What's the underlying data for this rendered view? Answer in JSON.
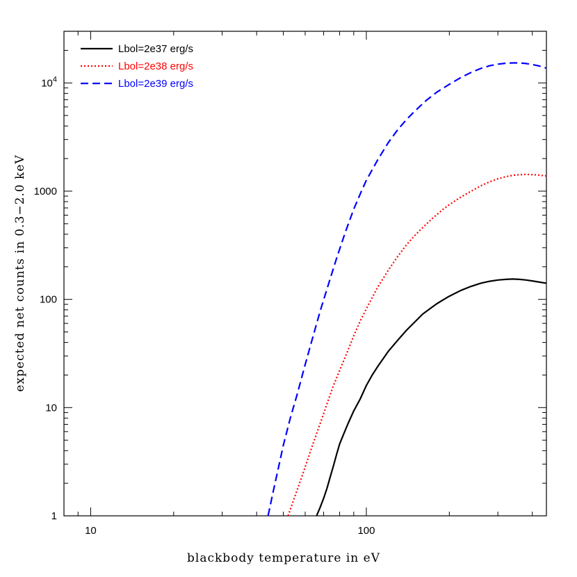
{
  "chart_data": {
    "type": "line",
    "title": "",
    "xlabel": "blackbody temperature in eV",
    "ylabel": "expected net counts in 0.3−2.0 keV",
    "x_scale": "log",
    "y_scale": "log",
    "xlim": [
      8,
      450
    ],
    "ylim": [
      1,
      30000
    ],
    "x_ticks": [
      {
        "value": 10,
        "label": "10"
      },
      {
        "value": 100,
        "label": "100"
      }
    ],
    "y_ticks": [
      {
        "value": 1,
        "label": "1"
      },
      {
        "value": 10,
        "label": "10"
      },
      {
        "value": 100,
        "label": "100"
      },
      {
        "value": 1000,
        "label": "1000"
      },
      {
        "value": 10000,
        "label": "10",
        "sup": "4"
      }
    ],
    "legend_position": "top-left",
    "series": [
      {
        "name": "Lbol=2e37 erg/s",
        "color": "#000000",
        "style": "solid",
        "x": [
          66,
          68,
          70,
          72,
          74,
          76,
          78,
          80,
          83,
          86,
          90,
          95,
          100,
          105,
          110,
          120,
          130,
          140,
          150,
          160,
          170,
          180,
          190,
          200,
          220,
          240,
          260,
          280,
          300,
          320,
          340,
          360,
          380,
          400,
          420,
          450
        ],
        "y": [
          1,
          1.2,
          1.45,
          1.8,
          2.3,
          2.9,
          3.7,
          4.6,
          5.8,
          7.2,
          9.3,
          12,
          16,
          20,
          24,
          33,
          42,
          52,
          62,
          73,
          82,
          91,
          99,
          107,
          121,
          132,
          141,
          147,
          151,
          153,
          154,
          153,
          151,
          148,
          145,
          141
        ]
      },
      {
        "name": "Lbol=2e38 erg/s",
        "color": "#ff0000",
        "style": "dotted",
        "x": [
          52,
          55,
          58,
          61,
          64,
          67,
          70,
          73,
          76,
          80,
          85,
          90,
          95,
          100,
          110,
          120,
          130,
          140,
          150,
          160,
          175,
          190,
          200,
          220,
          240,
          260,
          280,
          300,
          320,
          340,
          360,
          380,
          400,
          420,
          450
        ],
        "y": [
          1,
          1.5,
          2.2,
          3.2,
          4.6,
          6.4,
          8.8,
          12,
          16,
          22,
          32,
          46,
          63,
          82,
          130,
          185,
          250,
          320,
          390,
          460,
          570,
          680,
          750,
          880,
          1000,
          1120,
          1220,
          1300,
          1360,
          1400,
          1420,
          1430,
          1420,
          1410,
          1380
        ]
      },
      {
        "name": "Lbol=2e39 erg/s",
        "color": "#0000ff",
        "style": "dashed",
        "x": [
          44,
          46,
          48,
          50,
          53,
          56,
          60,
          64,
          68,
          73,
          78,
          84,
          90,
          96,
          100,
          110,
          120,
          130,
          140,
          150,
          165,
          180,
          200,
          220,
          240,
          260,
          280,
          300,
          320,
          340,
          360,
          380,
          400,
          420,
          450
        ],
        "y": [
          1,
          1.7,
          2.8,
          4.5,
          8,
          13,
          25,
          45,
          78,
          140,
          240,
          420,
          680,
          1000,
          1260,
          1950,
          2800,
          3700,
          4600,
          5500,
          6900,
          8200,
          9700,
          11200,
          12500,
          13600,
          14400,
          14900,
          15200,
          15300,
          15300,
          15100,
          14800,
          14400,
          13700
        ]
      }
    ]
  }
}
